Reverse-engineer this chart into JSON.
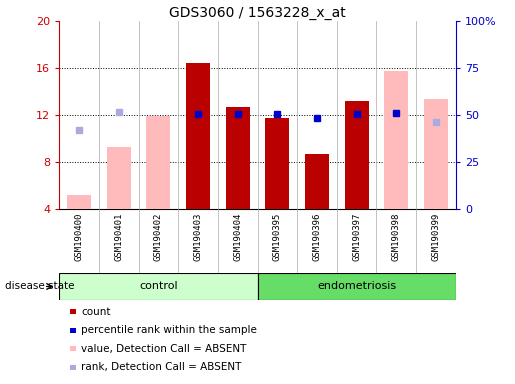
{
  "title": "GDS3060 / 1563228_x_at",
  "samples": [
    "GSM190400",
    "GSM190401",
    "GSM190402",
    "GSM190403",
    "GSM190404",
    "GSM190395",
    "GSM190396",
    "GSM190397",
    "GSM190398",
    "GSM190399"
  ],
  "groups": [
    "control",
    "control",
    "control",
    "control",
    "control",
    "endometriosis",
    "endometriosis",
    "endometriosis",
    "endometriosis",
    "endometriosis"
  ],
  "red_bars": [
    null,
    null,
    null,
    16.4,
    12.7,
    11.8,
    8.7,
    13.2,
    null,
    null
  ],
  "pink_bars": [
    5.2,
    9.3,
    11.9,
    null,
    null,
    null,
    null,
    null,
    15.8,
    13.4
  ],
  "blue_squares": [
    null,
    null,
    null,
    12.1,
    12.1,
    12.1,
    11.8,
    12.1,
    12.2,
    null
  ],
  "lightblue_squares": [
    10.7,
    12.3,
    null,
    null,
    null,
    null,
    null,
    null,
    null,
    11.4
  ],
  "ylim_left": [
    4,
    20
  ],
  "yticks_left": [
    4,
    8,
    12,
    16,
    20
  ],
  "yticks_right_vals": [
    0,
    25,
    50,
    75,
    100
  ],
  "yticklabels_right": [
    "0",
    "25",
    "50",
    "75",
    "100%"
  ],
  "left_axis_color": "#cc0000",
  "right_axis_color": "#0000cc",
  "red_bar_color": "#bb0000",
  "pink_bar_color": "#ffbbbb",
  "blue_sq_color": "#0000cc",
  "lightblue_sq_color": "#aaaadd",
  "control_color": "#ccffcc",
  "endo_color": "#66dd66",
  "plot_bg": "#eeeeee",
  "grid_color": "#000000",
  "sep_color": "#aaaaaa",
  "label_bg": "#cccccc"
}
